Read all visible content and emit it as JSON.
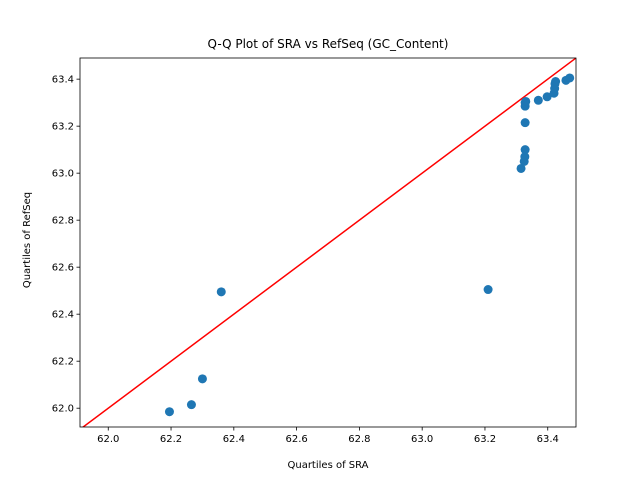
{
  "chart_data": {
    "type": "scatter",
    "title": "Q-Q Plot of SRA vs RefSeq (GC_Content)",
    "xlabel": "Quartiles of SRA",
    "ylabel": "Quartiles of RefSeq",
    "xlim": [
      61.91,
      63.49
    ],
    "ylim": [
      61.92,
      63.49
    ],
    "xticks": [
      "62.0",
      "62.2",
      "62.4",
      "62.6",
      "62.8",
      "63.0",
      "63.2",
      "63.4"
    ],
    "yticks": [
      "62.0",
      "62.2",
      "62.4",
      "62.6",
      "62.8",
      "63.0",
      "63.2",
      "63.4"
    ],
    "grid": false,
    "series": [
      {
        "points": [
          {
            "x": 62.195,
            "y": 61.985
          },
          {
            "x": 62.265,
            "y": 62.015
          },
          {
            "x": 62.3,
            "y": 62.125
          },
          {
            "x": 62.36,
            "y": 62.495
          },
          {
            "x": 63.21,
            "y": 62.505
          },
          {
            "x": 63.315,
            "y": 63.02
          },
          {
            "x": 63.325,
            "y": 63.05
          },
          {
            "x": 63.327,
            "y": 63.07
          },
          {
            "x": 63.328,
            "y": 63.1
          },
          {
            "x": 63.328,
            "y": 63.215
          },
          {
            "x": 63.328,
            "y": 63.285
          },
          {
            "x": 63.328,
            "y": 63.3
          },
          {
            "x": 63.33,
            "y": 63.305
          },
          {
            "x": 63.37,
            "y": 63.31
          },
          {
            "x": 63.398,
            "y": 63.325
          },
          {
            "x": 63.42,
            "y": 63.34
          },
          {
            "x": 63.422,
            "y": 63.36
          },
          {
            "x": 63.423,
            "y": 63.38
          },
          {
            "x": 63.425,
            "y": 63.39
          },
          {
            "x": 63.458,
            "y": 63.395
          },
          {
            "x": 63.47,
            "y": 63.405
          }
        ]
      }
    ],
    "reference_line": {
      "type": "y=x",
      "color": "#ff0000"
    },
    "colors": {
      "points": "#1f77b4",
      "line": "#ff0000"
    }
  }
}
